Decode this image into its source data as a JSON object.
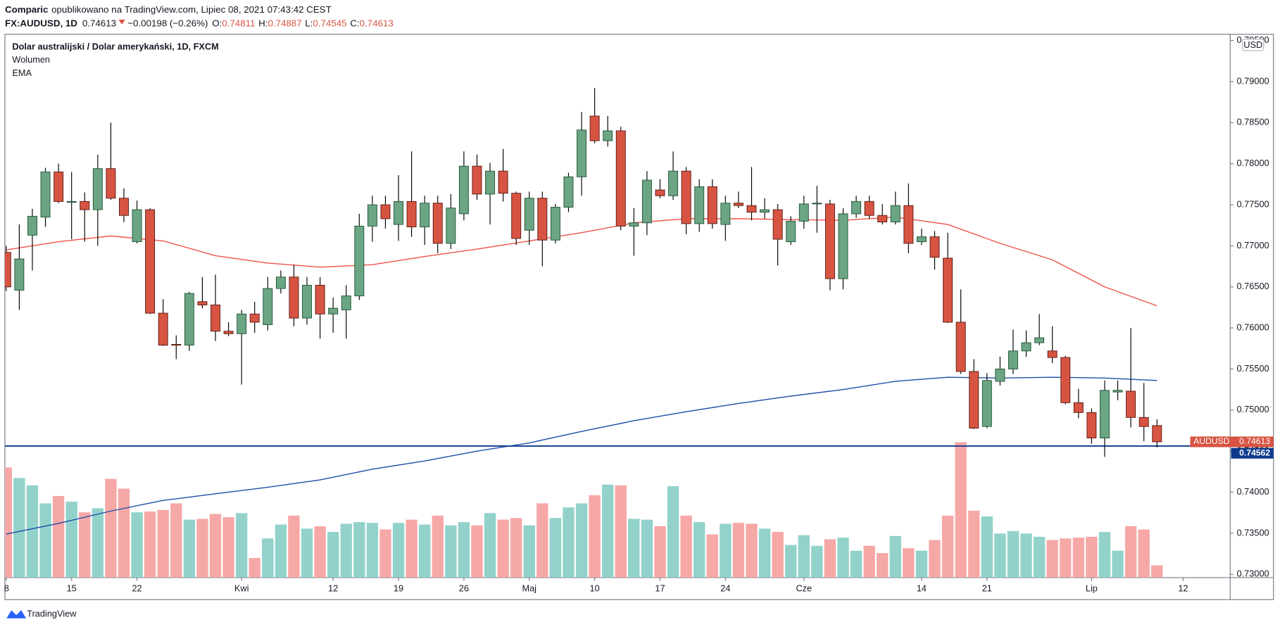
{
  "header": {
    "author": "Comparic",
    "published": "opublikowano na TradingView.com, Lipiec 08, 2021 07:43:42 CEST",
    "symbol": "FX:AUDUSD, 1D",
    "last": "0.74613",
    "change": "−0.00198 (−0.26%)",
    "o_label": "O:",
    "o": "0.74811",
    "h_label": "H:",
    "h": "0.74887",
    "l_label": "L:",
    "l": "0.74545",
    "c_label": "C:",
    "c": "0.74613"
  },
  "legend": {
    "instrument": "Dolar australijski / Dolar amerykański, 1D, FXCM",
    "volume": "Wolumen",
    "ema": "EMA"
  },
  "currency": "USD",
  "footer": "TradingView",
  "chart_data": {
    "type": "candlestick",
    "xlim": [
      -0.1,
      93.6
    ],
    "ylim": [
      0.7296,
      0.79576
    ],
    "xticks": [
      {
        "value": 0,
        "label": "8"
      },
      {
        "value": 5,
        "label": "15"
      },
      {
        "value": 10,
        "label": "22"
      },
      {
        "value": 18,
        "label": "Kwi"
      },
      {
        "value": 25,
        "label": "12"
      },
      {
        "value": 30,
        "label": "19"
      },
      {
        "value": 35,
        "label": "26"
      },
      {
        "value": 40,
        "label": "Maj"
      },
      {
        "value": 45,
        "label": "10"
      },
      {
        "value": 50,
        "label": "17"
      },
      {
        "value": 55,
        "label": "24"
      },
      {
        "value": 61,
        "label": "Cze"
      },
      {
        "value": 70,
        "label": "14"
      },
      {
        "value": 75,
        "label": "21"
      },
      {
        "value": 83,
        "label": "Lip"
      },
      {
        "value": 90,
        "label": "12"
      }
    ],
    "yticks": [
      {
        "value": 0.73,
        "label": "0.73000"
      },
      {
        "value": 0.735,
        "label": "0.73500"
      },
      {
        "value": 0.74,
        "label": "0.74000"
      },
      {
        "value": 0.745,
        "label": "0.74500"
      },
      {
        "value": 0.75,
        "label": "0.75000"
      },
      {
        "value": 0.755,
        "label": "0.75500"
      },
      {
        "value": 0.76,
        "label": "0.76000"
      },
      {
        "value": 0.765,
        "label": "0.76500"
      },
      {
        "value": 0.77,
        "label": "0.77000"
      },
      {
        "value": 0.775,
        "label": "0.77500"
      },
      {
        "value": 0.78,
        "label": "0.78000"
      },
      {
        "value": 0.785,
        "label": "0.78500"
      },
      {
        "value": 0.79,
        "label": "0.79000"
      },
      {
        "value": 0.795,
        "label": "0.79500"
      }
    ],
    "grid": false,
    "up_color": "#6ba583",
    "down_color": "#d75442",
    "up_border": "#225437",
    "down_border": "#5b1a13",
    "wick_color": "#000000",
    "open": [
      0.7692,
      0.7646,
      0.7713,
      0.7735,
      0.779,
      0.7753,
      0.7754,
      0.7744,
      0.7794,
      0.7758,
      0.7705,
      0.7744,
      0.7618,
      0.758,
      0.7579,
      0.7632,
      0.7628,
      0.7596,
      0.7593,
      0.7617,
      0.7604,
      0.7648,
      0.7662,
      0.7612,
      0.7652,
      0.7617,
      0.7622,
      0.7639,
      0.7724,
      0.775,
      0.7726,
      0.7754,
      0.7723,
      0.7752,
      0.7703,
      0.7739,
      0.7797,
      0.7763,
      0.7791,
      0.7764,
      0.7719,
      0.7758,
      0.7707,
      0.7747,
      0.7784,
      0.7858,
      0.7828,
      0.784,
      0.7724,
      0.7728,
      0.7768,
      0.7761,
      0.7791,
      0.7727,
      0.7772,
      0.7726,
      0.7752,
      0.7749,
      0.7741,
      0.7744,
      0.7705,
      0.773,
      0.7751,
      0.7751,
      0.766,
      0.7739,
      0.7754,
      0.7737,
      0.7729,
      0.7749,
      0.7705,
      0.7711,
      0.7685,
      0.7607,
      0.7547,
      0.748,
      0.7535,
      0.755,
      0.7572,
      0.7582,
      0.7572,
      0.7564,
      0.7509,
      0.7497,
      0.7466,
      0.7522,
      0.7523,
      0.7491,
      0.74811
    ],
    "high": [
      0.77,
      0.7726,
      0.7745,
      0.7795,
      0.78,
      0.779,
      0.7765,
      0.7811,
      0.785,
      0.777,
      0.7755,
      0.7746,
      0.7635,
      0.7591,
      0.7644,
      0.7662,
      0.7665,
      0.7607,
      0.7622,
      0.7632,
      0.7662,
      0.767,
      0.7677,
      0.7662,
      0.7662,
      0.7637,
      0.7652,
      0.7739,
      0.7761,
      0.7761,
      0.7786,
      0.7815,
      0.7761,
      0.7761,
      0.7763,
      0.7815,
      0.7811,
      0.7801,
      0.7818,
      0.7766,
      0.7766,
      0.7766,
      0.7751,
      0.7789,
      0.7863,
      0.7892,
      0.7858,
      0.7845,
      0.7746,
      0.7791,
      0.7781,
      0.7815,
      0.7796,
      0.7781,
      0.7781,
      0.7761,
      0.7766,
      0.7796,
      0.7758,
      0.7751,
      0.7736,
      0.7761,
      0.7773,
      0.7756,
      0.7746,
      0.7761,
      0.7761,
      0.7751,
      0.7766,
      0.7776,
      0.7721,
      0.7718,
      0.7716,
      0.7647,
      0.7562,
      0.7545,
      0.7565,
      0.7598,
      0.7597,
      0.7617,
      0.7602,
      0.7566,
      0.7526,
      0.7502,
      0.7536,
      0.7536,
      0.76,
      0.7533,
      0.74887
    ],
    "low": [
      0.7645,
      0.7622,
      0.767,
      0.7723,
      0.7752,
      0.7708,
      0.7705,
      0.77,
      0.7756,
      0.7729,
      0.7703,
      0.7617,
      0.7578,
      0.7562,
      0.7572,
      0.7624,
      0.7584,
      0.759,
      0.7531,
      0.7594,
      0.7597,
      0.7642,
      0.7602,
      0.7604,
      0.7587,
      0.7594,
      0.7587,
      0.7634,
      0.7705,
      0.7721,
      0.7706,
      0.7711,
      0.7701,
      0.7691,
      0.7696,
      0.7731,
      0.7756,
      0.7726,
      0.7754,
      0.7701,
      0.7701,
      0.7675,
      0.7703,
      0.7741,
      0.7761,
      0.7825,
      0.7821,
      0.7719,
      0.7688,
      0.7713,
      0.7758,
      0.7756,
      0.7714,
      0.7717,
      0.7721,
      0.7706,
      0.7746,
      0.7731,
      0.7733,
      0.7676,
      0.7701,
      0.7721,
      0.7716,
      0.7646,
      0.7647,
      0.7734,
      0.7733,
      0.7726,
      0.7726,
      0.7691,
      0.7701,
      0.7671,
      0.7606,
      0.7544,
      0.7477,
      0.7478,
      0.753,
      0.7544,
      0.7565,
      0.7579,
      0.7557,
      0.7507,
      0.749,
      0.7459,
      0.7443,
      0.7512,
      0.7479,
      0.7462,
      0.74545
    ],
    "close": [
      0.765,
      0.7684,
      0.7736,
      0.779,
      0.7754,
      0.7754,
      0.7744,
      0.7794,
      0.7758,
      0.7737,
      0.7744,
      0.7618,
      0.7579,
      0.7579,
      0.7642,
      0.7628,
      0.7596,
      0.7593,
      0.7617,
      0.7607,
      0.7648,
      0.7662,
      0.7612,
      0.7652,
      0.7617,
      0.7624,
      0.7639,
      0.7724,
      0.775,
      0.7733,
      0.7754,
      0.7723,
      0.7752,
      0.7703,
      0.7746,
      0.7797,
      0.7763,
      0.7791,
      0.7764,
      0.7709,
      0.7758,
      0.7707,
      0.7747,
      0.7784,
      0.7841,
      0.7828,
      0.784,
      0.7724,
      0.7728,
      0.778,
      0.7761,
      0.7791,
      0.7727,
      0.7772,
      0.7727,
      0.7752,
      0.7749,
      0.7741,
      0.7744,
      0.7708,
      0.773,
      0.7751,
      0.7752,
      0.766,
      0.7739,
      0.7754,
      0.7737,
      0.7729,
      0.7749,
      0.7703,
      0.7711,
      0.7686,
      0.7607,
      0.7547,
      0.7478,
      0.7536,
      0.755,
      0.7572,
      0.7582,
      0.7588,
      0.7564,
      0.7509,
      0.7497,
      0.7466,
      0.7524,
      0.7524,
      0.7491,
      0.748,
      0.74613
    ],
    "volume": {
      "ylim": [
        0,
        666
      ],
      "up_color": "#92d2cb",
      "down_color": "#f6a8a6",
      "values": [
        135,
        122,
        113,
        91,
        100,
        93,
        80,
        85,
        121,
        109,
        80,
        81,
        83,
        91,
        71,
        72,
        78,
        74,
        79,
        24,
        48,
        65,
        76,
        60,
        63,
        56,
        66,
        68,
        67,
        59,
        67,
        71,
        65,
        76,
        64,
        68,
        64,
        79,
        71,
        73,
        64,
        91,
        73,
        86,
        91,
        101,
        114,
        113,
        72,
        71,
        63,
        112,
        76,
        68,
        53,
        66,
        67,
        66,
        60,
        56,
        40,
        52,
        39,
        47,
        49,
        33,
        39,
        30,
        51,
        36,
        33,
        46,
        76,
        166,
        82,
        75,
        54,
        57,
        54,
        50,
        46,
        48,
        49,
        50,
        56,
        33,
        63,
        59,
        15
      ]
    },
    "ema": [
      {
        "color": "#f0524a",
        "x": [
          0,
          4,
          8,
          12,
          16,
          20,
          24,
          28,
          32,
          36,
          40,
          44,
          48,
          52,
          56,
          60,
          64,
          68,
          72,
          76,
          80,
          84,
          88
        ],
        "values": [
          0.7695,
          0.7705,
          0.7712,
          0.7706,
          0.7688,
          0.7679,
          0.7674,
          0.7677,
          0.7687,
          0.7696,
          0.7706,
          0.7716,
          0.7728,
          0.7733,
          0.7733,
          0.7732,
          0.7731,
          0.7735,
          0.7726,
          0.7703,
          0.7683,
          0.765,
          0.7627
        ]
      },
      {
        "color": "#1c4fa8",
        "x": [
          0,
          4,
          8,
          12,
          16,
          20,
          24,
          28,
          32,
          36,
          40,
          44,
          48,
          52,
          56,
          60,
          64,
          68,
          72,
          76,
          80,
          84,
          88
        ],
        "values": [
          0.7349,
          0.7362,
          0.7377,
          0.739,
          0.7398,
          0.7406,
          0.7415,
          0.7428,
          0.7438,
          0.745,
          0.746,
          0.7474,
          0.7487,
          0.7498,
          0.7508,
          0.7517,
          0.7525,
          0.7535,
          0.754,
          0.7539,
          0.754,
          0.7539,
          0.7536
        ]
      }
    ],
    "hline": {
      "value": 0.74562,
      "color": "#0d3a8c"
    },
    "last_price": {
      "symbol": "AUDUSD",
      "value": 0.74613,
      "color": "#d75442"
    }
  }
}
